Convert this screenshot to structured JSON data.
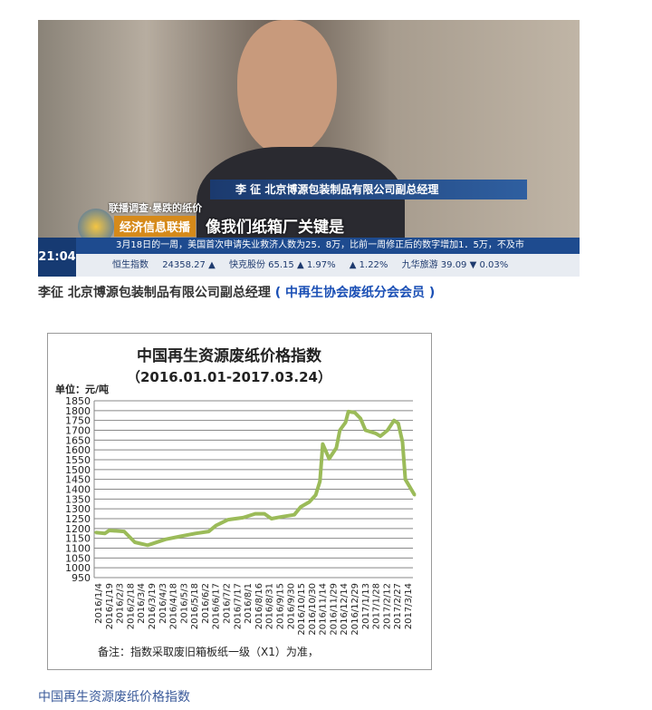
{
  "photo": {
    "name_bar": "李  征  北京博源包装制品有限公司副总经理",
    "topic": "联播调查·暴跌的纸价",
    "program": "经济信息联播",
    "subtitle": "像我们纸箱厂关键是",
    "clock": "21:04",
    "ticker": "3月18日的一周，美国首次申请失业救济人数为25．8万，比前一周修正后的数字增加1．5万，不及市",
    "stocks": [
      "恒生指数",
      "24358.27 ▲",
      "快克股份 65.15 ▲ 1.97%",
      "▲ 1.22%",
      "九华旅游 39.09 ▼ 0.03%"
    ]
  },
  "caption1": {
    "name": "李征 北京博源包装制品有限公司副总经理",
    "org": "( 中再生协会废纸分会会员 )"
  },
  "caption2": "中国再生资源废纸价格指数",
  "chart_data": {
    "type": "line",
    "title": "中国再生资源废纸价格指数",
    "subtitle": "（2016.01.01-2017.03.24）",
    "ylabel": "单位：元/吨",
    "note": "备注：指数采取废旧箱板纸一级（X1）为准，",
    "ylim": [
      950,
      1850
    ],
    "yticks": [
      950,
      1000,
      1050,
      1100,
      1150,
      1200,
      1250,
      1300,
      1350,
      1400,
      1450,
      1500,
      1550,
      1600,
      1650,
      1700,
      1750,
      1800,
      1850
    ],
    "xticks": [
      "2016/1/4",
      "2016/1/19",
      "2016/2/3",
      "2016/2/18",
      "2016/3/4",
      "2016/3/19",
      "2016/4/3",
      "2016/4/18",
      "2016/5/3",
      "2016/5/18",
      "2016/6/2",
      "2016/6/17",
      "2016/7/2",
      "2016/7/17",
      "2016/8/1",
      "2016/8/16",
      "2016/8/31",
      "2016/9/15",
      "2016/9/30",
      "2016/10/15",
      "2016/10/30",
      "2016/11/14",
      "2016/11/29",
      "2016/12/14",
      "2016/12/29",
      "2017/1/13",
      "2017/1/28",
      "2017/2/12",
      "2017/2/27",
      "2017/3/14"
    ],
    "grid": true,
    "line_color": "#9bbb59",
    "series": [
      {
        "points": [
          [
            "2016/1/1",
            1180
          ],
          [
            "2016/1/14",
            1175
          ],
          [
            "2016/1/20",
            1190
          ],
          [
            "2016/2/10",
            1185
          ],
          [
            "2016/2/25",
            1130
          ],
          [
            "2016/3/14",
            1115
          ],
          [
            "2016/4/8",
            1145
          ],
          [
            "2016/4/29",
            1160
          ],
          [
            "2016/5/20",
            1175
          ],
          [
            "2016/6/8",
            1185
          ],
          [
            "2016/6/18",
            1215
          ],
          [
            "2016/7/5",
            1245
          ],
          [
            "2016/7/26",
            1255
          ],
          [
            "2016/8/12",
            1275
          ],
          [
            "2016/8/25",
            1275
          ],
          [
            "2016/9/4",
            1250
          ],
          [
            "2016/9/19",
            1260
          ],
          [
            "2016/10/6",
            1270
          ],
          [
            "2016/10/15",
            1310
          ],
          [
            "2016/10/27",
            1335
          ],
          [
            "2016/11/5",
            1370
          ],
          [
            "2016/11/11",
            1440
          ],
          [
            "2016/11/15",
            1630
          ],
          [
            "2016/11/24",
            1555
          ],
          [
            "2016/12/4",
            1610
          ],
          [
            "2016/12/9",
            1700
          ],
          [
            "2016/12/17",
            1740
          ],
          [
            "2016/12/21",
            1795
          ],
          [
            "2016/12/30",
            1790
          ],
          [
            "2017/1/7",
            1760
          ],
          [
            "2017/1/14",
            1700
          ],
          [
            "2017/1/28",
            1685
          ],
          [
            "2017/2/4",
            1670
          ],
          [
            "2017/2/14",
            1700
          ],
          [
            "2017/2/23",
            1750
          ],
          [
            "2017/3/1",
            1735
          ],
          [
            "2017/3/7",
            1640
          ],
          [
            "2017/3/11",
            1450
          ],
          [
            "2017/3/24",
            1370
          ]
        ]
      }
    ]
  }
}
